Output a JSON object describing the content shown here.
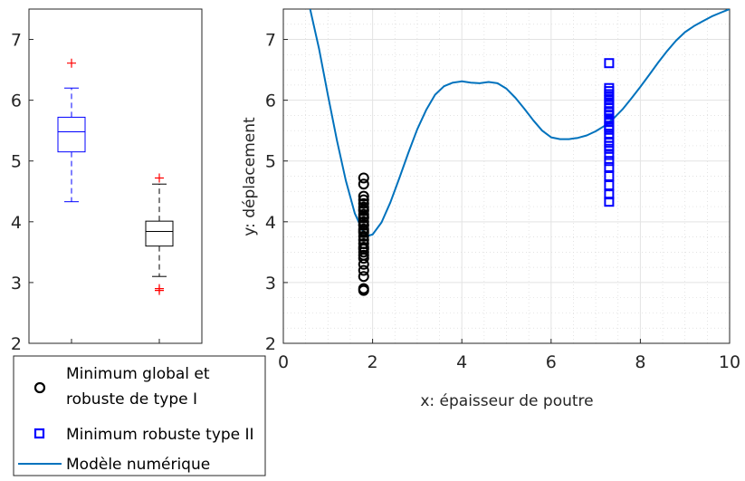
{
  "chart_data": [
    {
      "type": "boxplot",
      "title": "",
      "xlabel": "",
      "ylabel": "",
      "ylim": [
        2,
        7.5
      ],
      "yticks": [
        2,
        3,
        4,
        5,
        6,
        7
      ],
      "grid": false,
      "boxes": [
        {
          "color": "#0000FF",
          "q1": 5.15,
          "median": 5.48,
          "q3": 5.72,
          "whisker_low": 4.33,
          "whisker_high": 6.2,
          "outliers": [
            6.61
          ]
        },
        {
          "color": "#000000",
          "q1": 3.6,
          "median": 3.84,
          "q3": 4.01,
          "whisker_low": 3.1,
          "whisker_high": 4.62,
          "outliers": [
            4.72,
            2.9,
            2.87
          ]
        }
      ],
      "outlier_color": "#FF0000"
    },
    {
      "type": "scatter",
      "title": "",
      "xlabel": "x: épaisseur de poutre",
      "ylabel": "y: déplacement",
      "xlim": [
        0,
        10
      ],
      "ylim": [
        2,
        7.5
      ],
      "xticks": [
        0,
        2,
        4,
        6,
        8,
        10
      ],
      "yticks": [
        2,
        3,
        4,
        5,
        6,
        7
      ],
      "grid": true,
      "minor_grid": true,
      "series": [
        {
          "name": "Minimum global et robuste de type I",
          "marker": "circle",
          "color": "#000000",
          "x": [
            1.8,
            1.8,
            1.8,
            1.8,
            1.8,
            1.8,
            1.8,
            1.8,
            1.8,
            1.8,
            1.8,
            1.8,
            1.8,
            1.8,
            1.8,
            1.8,
            1.8,
            1.8,
            1.8,
            1.8,
            1.8,
            1.8,
            1.8,
            1.8,
            1.8,
            1.8,
            1.8,
            1.8,
            1.8,
            1.8
          ],
          "y": [
            2.87,
            2.9,
            3.1,
            3.2,
            3.3,
            3.4,
            3.5,
            3.58,
            3.64,
            3.7,
            3.76,
            3.82,
            3.88,
            3.94,
            4.0,
            4.06,
            4.12,
            4.18,
            4.24,
            4.3,
            4.36,
            4.42,
            4.62,
            4.72,
            3.45,
            3.55,
            3.85,
            3.95,
            4.08,
            4.2
          ]
        },
        {
          "name": "Minimum robuste type II",
          "marker": "square",
          "color": "#0000FF",
          "x": [
            7.3,
            7.3,
            7.3,
            7.3,
            7.3,
            7.3,
            7.3,
            7.3,
            7.3,
            7.3,
            7.3,
            7.3,
            7.3,
            7.3,
            7.3,
            7.3,
            7.3,
            7.3,
            7.3,
            7.3,
            7.3,
            7.3,
            7.3,
            7.3,
            7.3,
            7.3,
            7.3,
            7.3
          ],
          "y": [
            4.33,
            4.45,
            4.6,
            4.75,
            4.9,
            5.0,
            5.1,
            5.2,
            5.3,
            5.38,
            5.45,
            5.52,
            5.58,
            5.64,
            5.7,
            5.76,
            5.82,
            5.88,
            5.94,
            6.0,
            6.05,
            6.1,
            6.15,
            6.2,
            6.61,
            5.25,
            5.55,
            5.8
          ]
        },
        {
          "name": "Modèle numérique",
          "type": "line",
          "color": "#0072BD",
          "x": [
            0.6,
            0.8,
            1.0,
            1.2,
            1.4,
            1.6,
            1.8,
            1.9,
            2.0,
            2.2,
            2.4,
            2.6,
            2.8,
            3.0,
            3.2,
            3.4,
            3.6,
            3.8,
            4.0,
            4.2,
            4.4,
            4.6,
            4.8,
            5.0,
            5.2,
            5.4,
            5.6,
            5.8,
            6.0,
            6.2,
            6.4,
            6.6,
            6.8,
            7.0,
            7.2,
            7.4,
            7.6,
            7.8,
            8.0,
            8.2,
            8.4,
            8.6,
            8.8,
            9.0,
            9.2,
            9.4,
            9.6,
            9.8,
            10.0
          ],
          "y": [
            7.5,
            6.85,
            6.08,
            5.34,
            4.68,
            4.14,
            3.82,
            3.77,
            3.79,
            3.99,
            4.32,
            4.72,
            5.13,
            5.52,
            5.84,
            6.09,
            6.23,
            6.29,
            6.31,
            6.29,
            6.28,
            6.3,
            6.28,
            6.19,
            6.04,
            5.86,
            5.67,
            5.5,
            5.39,
            5.36,
            5.36,
            5.38,
            5.42,
            5.49,
            5.58,
            5.7,
            5.85,
            6.03,
            6.22,
            6.42,
            6.62,
            6.81,
            6.98,
            7.12,
            7.22,
            7.3,
            7.38,
            7.44,
            7.5
          ]
        }
      ],
      "legend": {
        "position": "bottom-left",
        "entries": [
          {
            "label_line1": "Minimum global et",
            "label_line2": "robuste de type I",
            "marker": "circle",
            "color": "#000000"
          },
          {
            "label_line1": "Minimum robuste type II",
            "label_line2": "",
            "marker": "square",
            "color": "#0000FF"
          },
          {
            "label_line1": "Modèle numérique",
            "label_line2": "",
            "marker": "line",
            "color": "#0072BD"
          }
        ]
      }
    }
  ]
}
